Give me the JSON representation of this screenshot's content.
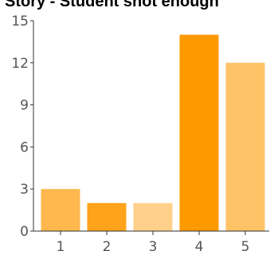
{
  "chart_data": {
    "type": "bar",
    "title": "Story - Student shot enough",
    "xlabel": "",
    "ylabel": "",
    "categories": [
      "1",
      "2",
      "3",
      "4",
      "5"
    ],
    "values": [
      3,
      2,
      2,
      14,
      12
    ],
    "bar_colors": [
      "#ffb84d",
      "#ffa31a",
      "#ffd08a",
      "#ff9900",
      "#ffc266"
    ],
    "ylim": [
      0,
      15
    ],
    "yticks": [
      "0",
      "3",
      "6",
      "9",
      "12",
      "15"
    ],
    "grid": false,
    "legend": "none"
  }
}
